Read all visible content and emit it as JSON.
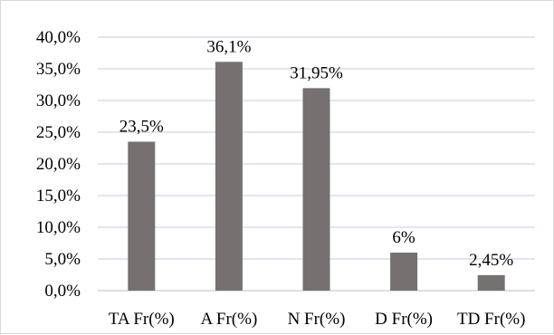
{
  "chart_data": {
    "type": "bar",
    "categories": [
      "TA Fr(%)",
      "A Fr(%)",
      "N Fr(%)",
      "D Fr(%)",
      "TD Fr(%)"
    ],
    "values": [
      23.5,
      36.1,
      31.95,
      6,
      2.45
    ],
    "data_labels": [
      "23,5%",
      "36,1%",
      "31,95%",
      "6%",
      "2,45%"
    ],
    "y_ticks": [
      {
        "value": 0,
        "label": "0,0%"
      },
      {
        "value": 5,
        "label": "5,0%"
      },
      {
        "value": 10,
        "label": "10,0%"
      },
      {
        "value": 15,
        "label": "15,0%"
      },
      {
        "value": 20,
        "label": "20,0%"
      },
      {
        "value": 25,
        "label": "25,0%"
      },
      {
        "value": 30,
        "label": "30,0%"
      },
      {
        "value": 35,
        "label": "35,0%"
      },
      {
        "value": 40,
        "label": "40,0%"
      }
    ],
    "title": "",
    "xlabel": "",
    "ylabel": "",
    "ylim": [
      0,
      40
    ],
    "grid": true,
    "legend": "none",
    "colors": {
      "bar": "#767171",
      "grid": "#c9c9e6",
      "axis": "#bfbfbf"
    }
  }
}
